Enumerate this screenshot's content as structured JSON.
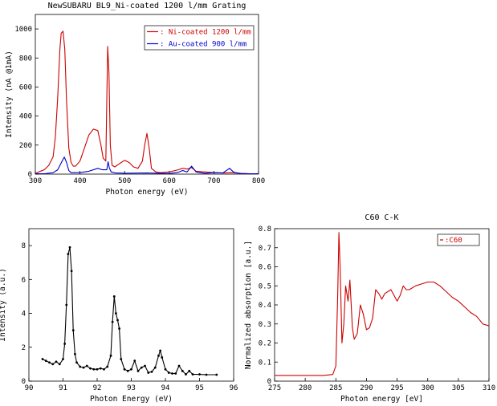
{
  "chart_data": [
    {
      "id": "top",
      "type": "line",
      "title": "NewSUBARU BL9_Ni-coated 1200 l/mm Grating",
      "xlabel": "Photon energy  (eV)",
      "ylabel": "Intensity (nA @1mA)",
      "xlim": [
        300,
        800
      ],
      "ylim": [
        0,
        1100
      ],
      "xticks": [
        300,
        400,
        500,
        600,
        700,
        800
      ],
      "yticks": [
        0,
        200,
        400,
        600,
        800,
        1000
      ],
      "legend_position": "top-right",
      "grid": false,
      "series": [
        {
          "name": ": Ni-coated 1200 l/mm",
          "color": "#cc0000",
          "x": [
            300,
            310,
            320,
            330,
            340,
            345,
            350,
            355,
            358,
            362,
            366,
            370,
            375,
            380,
            385,
            390,
            400,
            410,
            420,
            430,
            440,
            447,
            452,
            458,
            462,
            465,
            468,
            472,
            478,
            490,
            500,
            510,
            520,
            530,
            540,
            545,
            550,
            555,
            560,
            570,
            580,
            600,
            620,
            630,
            640,
            650,
            660,
            680,
            700,
            720,
            740,
            760,
            780,
            800
          ],
          "y": [
            5,
            18,
            30,
            60,
            120,
            260,
            520,
            860,
            970,
            985,
            860,
            500,
            180,
            80,
            55,
            55,
            90,
            180,
            270,
            310,
            300,
            200,
            110,
            90,
            880,
            700,
            200,
            60,
            50,
            75,
            95,
            80,
            50,
            40,
            90,
            200,
            280,
            180,
            40,
            15,
            10,
            15,
            30,
            40,
            35,
            45,
            20,
            15,
            10,
            8,
            10,
            5,
            3,
            3
          ]
        },
        {
          "name": ": Au-coated  900 l/mm",
          "color": "#0000cc",
          "x": [
            300,
            320,
            340,
            350,
            360,
            365,
            370,
            375,
            380,
            400,
            420,
            440,
            450,
            460,
            463,
            466,
            470,
            480,
            500,
            550,
            580,
            600,
            620,
            630,
            640,
            650,
            660,
            680,
            700,
            720,
            735,
            745,
            760,
            780,
            800
          ],
          "y": [
            2,
            3,
            10,
            30,
            90,
            118,
            80,
            25,
            10,
            10,
            20,
            40,
            30,
            30,
            85,
            40,
            15,
            8,
            6,
            8,
            5,
            4,
            12,
            25,
            15,
            55,
            15,
            5,
            10,
            8,
            40,
            12,
            4,
            2,
            2
          ]
        }
      ]
    },
    {
      "id": "bottom-left",
      "type": "line",
      "title": "",
      "xlabel": "Photon Energy  (eV)",
      "ylabel": "Intensity (a.u.)",
      "xlim": [
        90,
        96
      ],
      "ylim": [
        0,
        9
      ],
      "xticks": [
        90,
        91,
        92,
        93,
        94,
        95,
        96
      ],
      "yticks": [
        0,
        2,
        4,
        6,
        8
      ],
      "grid": false,
      "series": [
        {
          "color": "#000000",
          "x": [
            90.4,
            90.5,
            90.6,
            90.7,
            90.8,
            90.9,
            91.0,
            91.05,
            91.1,
            91.15,
            91.2,
            91.25,
            91.3,
            91.35,
            91.4,
            91.5,
            91.6,
            91.7,
            91.8,
            91.9,
            92.0,
            92.1,
            92.2,
            92.3,
            92.4,
            92.45,
            92.5,
            92.55,
            92.6,
            92.65,
            92.7,
            92.8,
            92.9,
            93.0,
            93.1,
            93.2,
            93.3,
            93.4,
            93.5,
            93.6,
            93.7,
            93.8,
            93.85,
            93.9,
            94.0,
            94.1,
            94.2,
            94.3,
            94.4,
            94.5,
            94.6,
            94.7,
            94.8,
            95.0,
            95.2,
            95.5
          ],
          "y": [
            1.3,
            1.2,
            1.1,
            1.0,
            1.15,
            1.0,
            1.3,
            2.2,
            4.5,
            7.5,
            7.9,
            6.5,
            3.0,
            1.6,
            1.1,
            0.85,
            0.8,
            0.9,
            0.75,
            0.7,
            0.7,
            0.75,
            0.7,
            0.85,
            1.5,
            3.5,
            5.0,
            4.0,
            3.6,
            3.1,
            1.3,
            0.7,
            0.6,
            0.7,
            1.2,
            0.6,
            0.8,
            0.9,
            0.5,
            0.55,
            0.8,
            1.5,
            1.8,
            1.4,
            0.7,
            0.5,
            0.45,
            0.45,
            0.9,
            0.6,
            0.4,
            0.6,
            0.4,
            0.4,
            0.38,
            0.38
          ]
        }
      ]
    },
    {
      "id": "bottom-right",
      "type": "line",
      "title": "C60 C-K",
      "xlabel": "Photon energy [eV]",
      "ylabel": "Normalized absorption [a.u.]",
      "xlim": [
        275,
        310
      ],
      "ylim": [
        0,
        0.8
      ],
      "xticks": [
        275,
        280,
        285,
        290,
        295,
        300,
        305,
        310
      ],
      "yticks": [
        0,
        0.1,
        0.2,
        0.3,
        0.4,
        0.5,
        0.6,
        0.7,
        0.8
      ],
      "legend_position": "top-right",
      "grid": false,
      "series": [
        {
          "name": ":C60",
          "color": "#cc0000",
          "x": [
            275,
            280,
            283,
            284.5,
            285.0,
            285.3,
            285.5,
            285.7,
            286.0,
            286.3,
            286.6,
            287.0,
            287.3,
            287.7,
            288.0,
            288.5,
            289.0,
            289.5,
            290.0,
            290.5,
            291.0,
            291.5,
            292.0,
            292.5,
            293.0,
            294.0,
            295.0,
            295.5,
            296.0,
            296.5,
            297.0,
            298.0,
            299.0,
            300.0,
            301.0,
            302.0,
            303.0,
            304.0,
            305.0,
            306.0,
            307.0,
            308.0,
            309.0,
            310.0
          ],
          "y": [
            0.03,
            0.03,
            0.03,
            0.035,
            0.08,
            0.45,
            0.78,
            0.6,
            0.2,
            0.3,
            0.5,
            0.42,
            0.53,
            0.28,
            0.22,
            0.25,
            0.4,
            0.35,
            0.27,
            0.28,
            0.33,
            0.48,
            0.46,
            0.43,
            0.46,
            0.48,
            0.42,
            0.45,
            0.5,
            0.48,
            0.48,
            0.5,
            0.51,
            0.52,
            0.52,
            0.5,
            0.47,
            0.44,
            0.42,
            0.39,
            0.36,
            0.34,
            0.3,
            0.29
          ]
        }
      ]
    }
  ]
}
